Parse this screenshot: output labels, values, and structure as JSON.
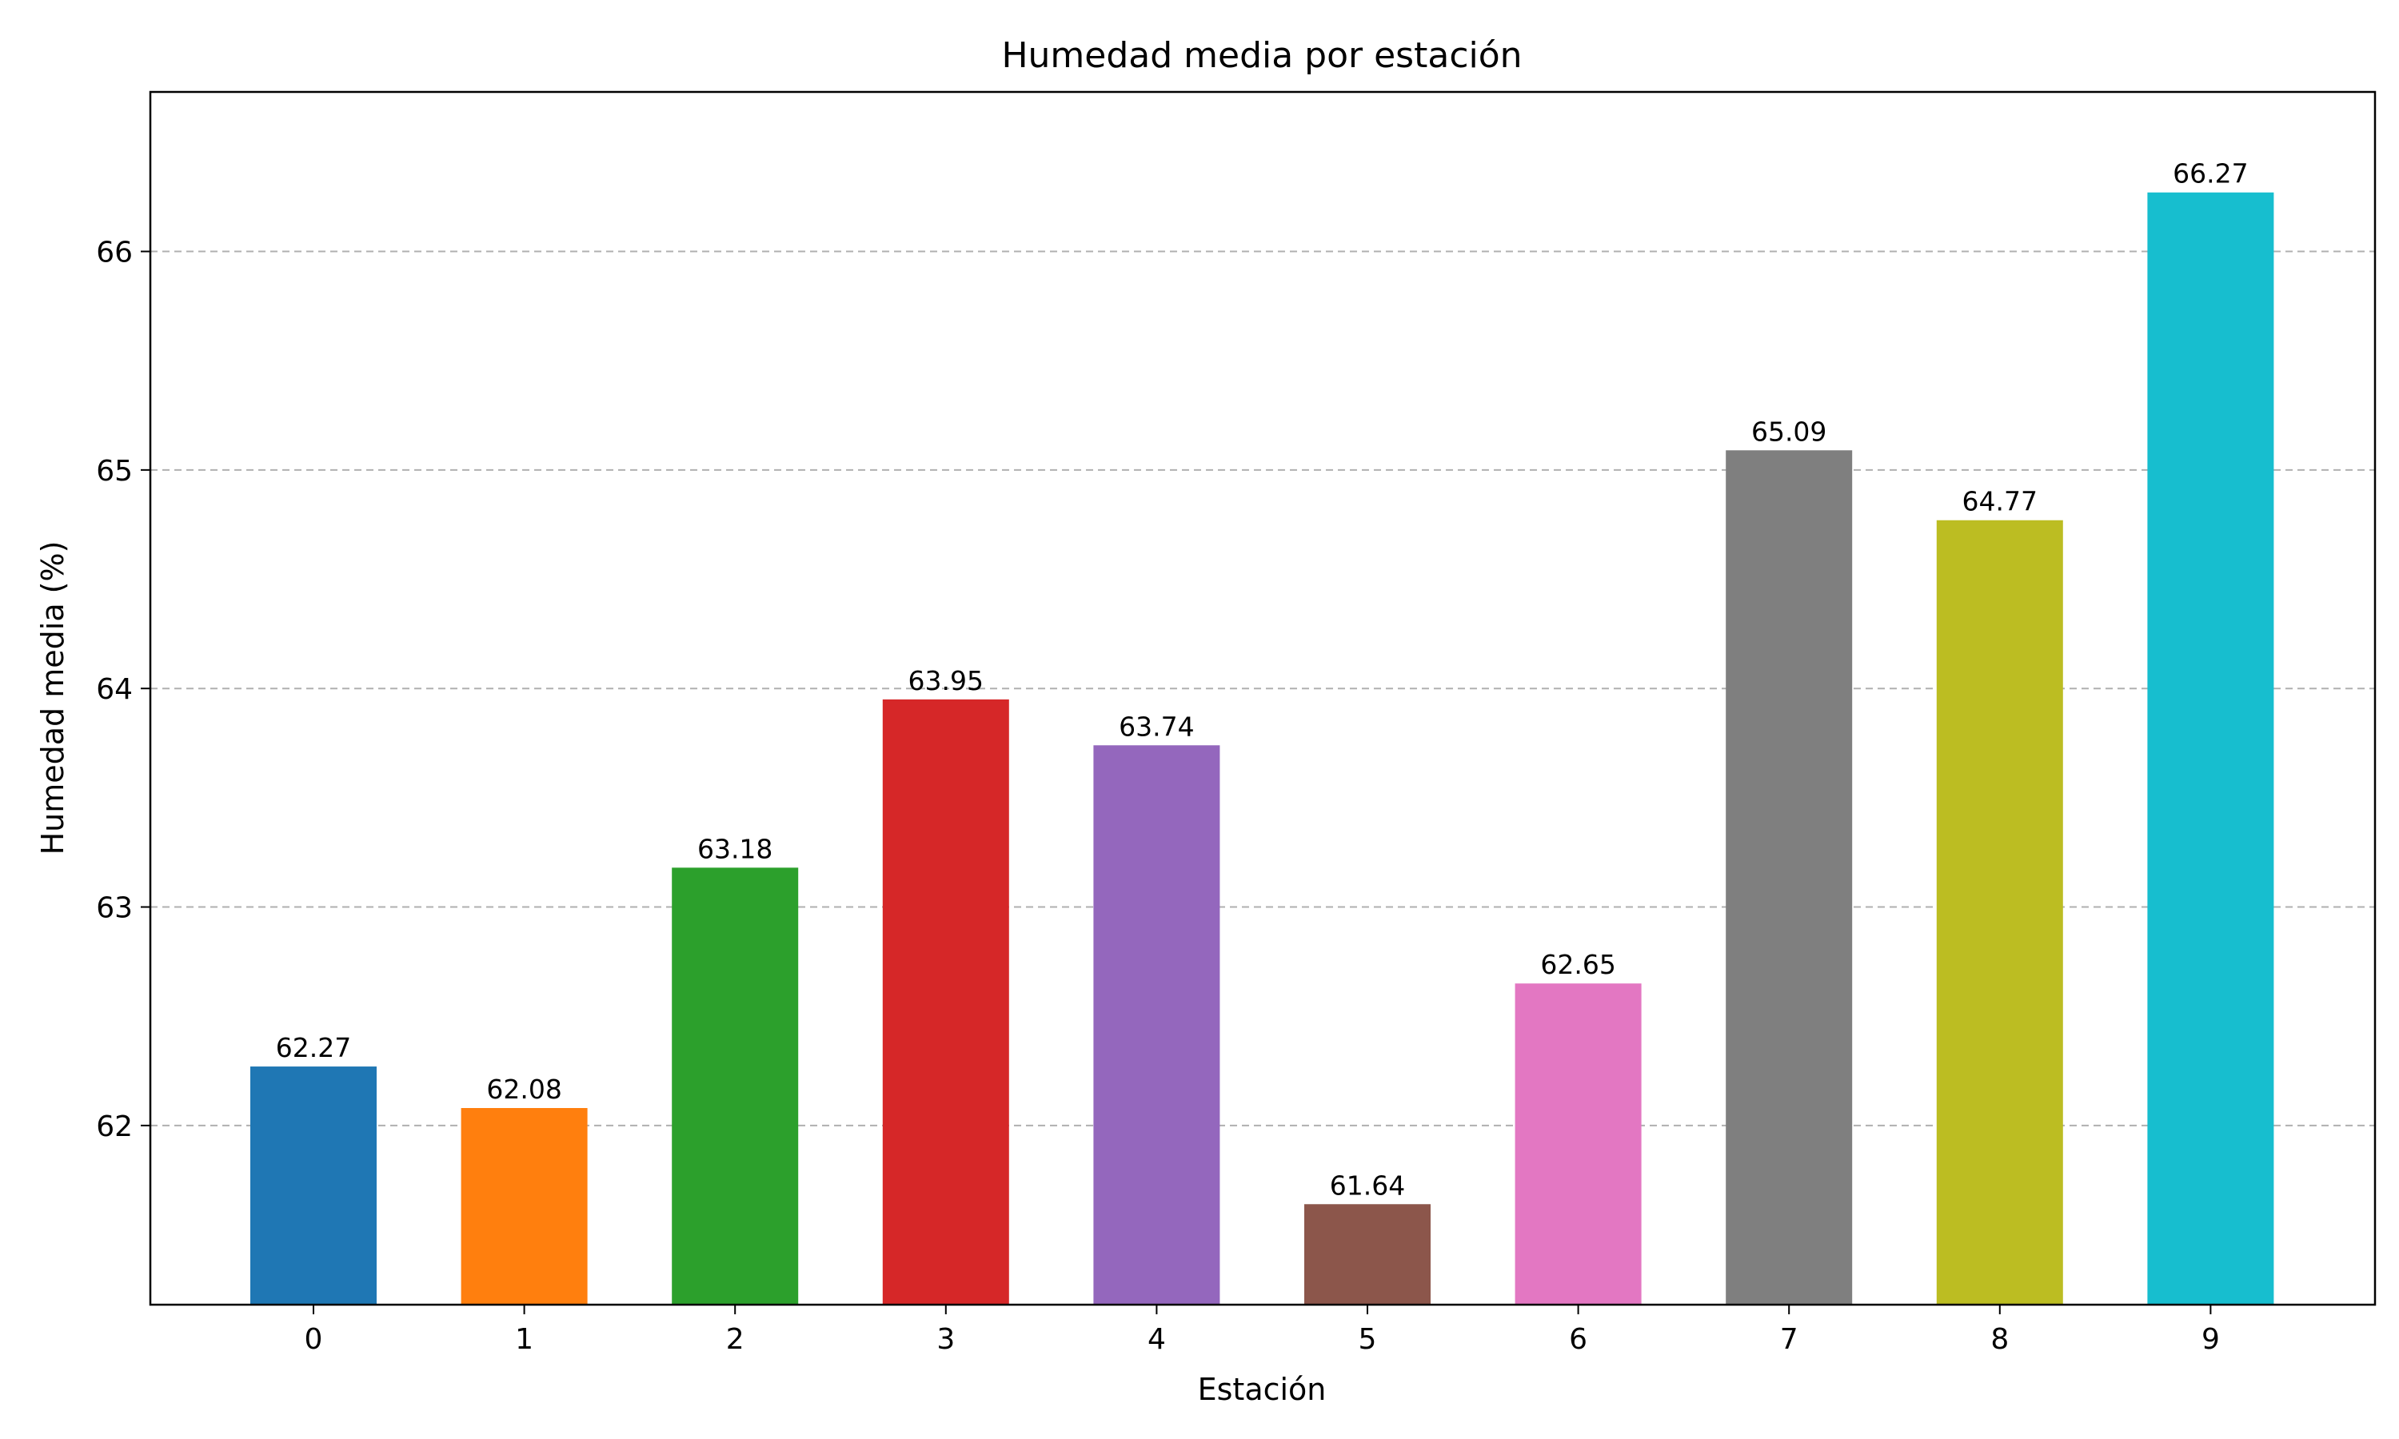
{
  "chart_data": {
    "type": "bar",
    "title": "Humedad media por estación",
    "xlabel": "Estación",
    "ylabel": "Humedad media (%)",
    "categories": [
      "0",
      "1",
      "2",
      "3",
      "4",
      "5",
      "6",
      "7",
      "8",
      "9"
    ],
    "values": [
      62.27,
      62.08,
      63.18,
      63.95,
      63.74,
      61.64,
      62.65,
      65.09,
      64.77,
      66.27
    ],
    "value_labels": [
      "62.27",
      "62.08",
      "63.18",
      "63.95",
      "63.74",
      "61.64",
      "62.65",
      "65.09",
      "64.77",
      "66.27"
    ],
    "colors": [
      "#1f77b4",
      "#ff7f0e",
      "#2ca02c",
      "#d62728",
      "#9467bd",
      "#8c564b",
      "#e377c2",
      "#7f7f7f",
      "#bcbd22",
      "#17becf"
    ],
    "ylim": [
      61.18,
      66.73
    ],
    "yticks": [
      62,
      63,
      64,
      65,
      66
    ],
    "ytick_labels": [
      "62",
      "63",
      "64",
      "65",
      "66"
    ],
    "grid": "y-dashed",
    "legend": "none"
  }
}
